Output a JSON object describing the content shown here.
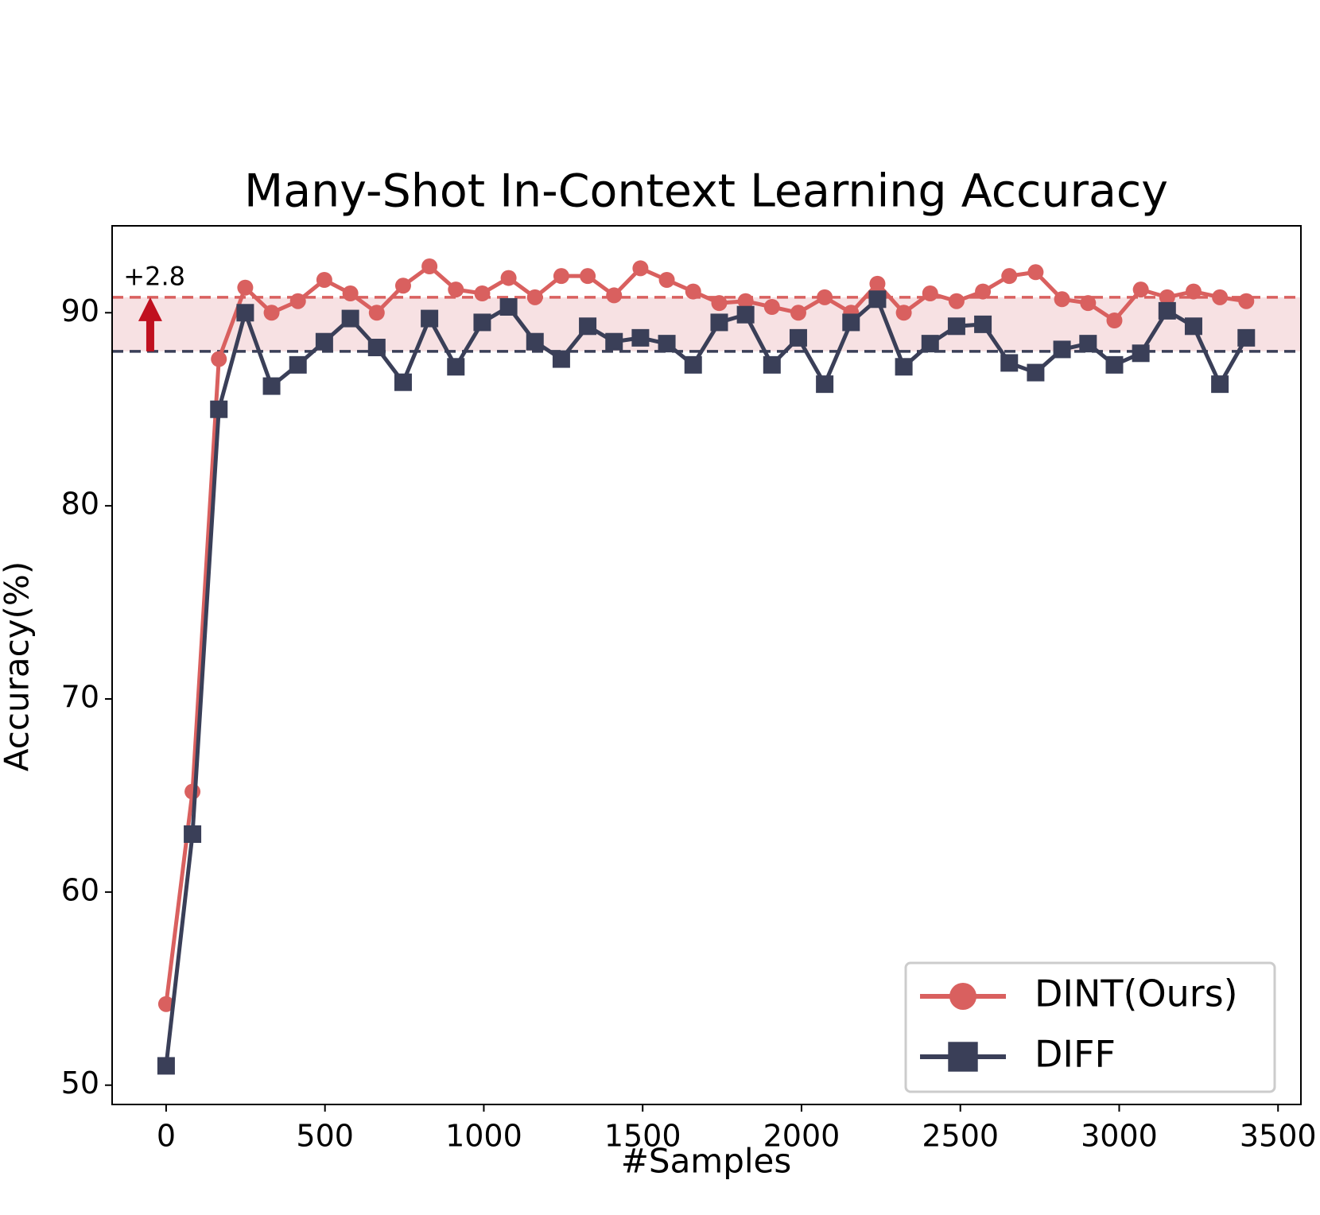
{
  "chart_data": {
    "type": "line",
    "title": "Many-Shot In-Context Learning Accuracy",
    "x_label": "#Samples",
    "y_label": "Accuracy(%)",
    "x": [
      0,
      83,
      166,
      249,
      332,
      415,
      498,
      580,
      663,
      746,
      829,
      912,
      995,
      1078,
      1161,
      1244,
      1327,
      1410,
      1493,
      1576,
      1659,
      1741,
      1824,
      1907,
      1990,
      2073,
      2156,
      2239,
      2322,
      2405,
      2488,
      2571,
      2654,
      2737,
      2820,
      2902,
      2985,
      3068,
      3151,
      3234,
      3317,
      3400
    ],
    "series": [
      {
        "name": "DINT(Ours)",
        "color": "#d9605f",
        "marker": "circle",
        "values": [
          54.2,
          65.2,
          87.6,
          91.3,
          90.0,
          90.6,
          91.7,
          91.0,
          90.0,
          91.4,
          92.4,
          91.2,
          91.0,
          91.8,
          90.8,
          91.9,
          91.9,
          90.9,
          92.3,
          91.7,
          91.1,
          90.5,
          90.6,
          90.3,
          90.0,
          90.8,
          90.0,
          91.5,
          90.0,
          91.0,
          90.6,
          91.1,
          91.9,
          92.1,
          90.7,
          90.5,
          89.6,
          91.2,
          90.8,
          91.1,
          90.8,
          90.6
        ]
      },
      {
        "name": "DIFF",
        "color": "#3a3f58",
        "marker": "square",
        "values": [
          51.0,
          63.0,
          85.0,
          90.0,
          86.2,
          87.3,
          88.5,
          89.7,
          88.2,
          86.4,
          89.7,
          87.2,
          89.5,
          90.3,
          88.5,
          87.6,
          89.3,
          88.5,
          88.7,
          88.4,
          87.3,
          89.5,
          89.9,
          87.3,
          88.7,
          86.3,
          89.5,
          90.7,
          87.2,
          88.4,
          89.3,
          89.4,
          87.4,
          86.9,
          88.1,
          88.4,
          87.3,
          87.9,
          90.1,
          89.3,
          86.3,
          88.7
        ]
      }
    ],
    "hlines": [
      {
        "value": 90.8,
        "color": "#d9605f"
      },
      {
        "value": 88.0,
        "color": "#3a3f58"
      }
    ],
    "band_color": "#f7e1e3",
    "annotation": {
      "text": "+2.8",
      "x": -37,
      "y": 91.8
    },
    "arrow": {
      "x": -50,
      "from": 88.0,
      "to": 90.8,
      "color": "#c0101f"
    },
    "xlim": [
      -170,
      3572
    ],
    "ylim": [
      49,
      94.5
    ],
    "xticks": [
      0,
      500,
      1000,
      1500,
      2000,
      2500,
      3000,
      3500
    ],
    "yticks": [
      50,
      60,
      70,
      80,
      90
    ],
    "legend": "lower right"
  }
}
